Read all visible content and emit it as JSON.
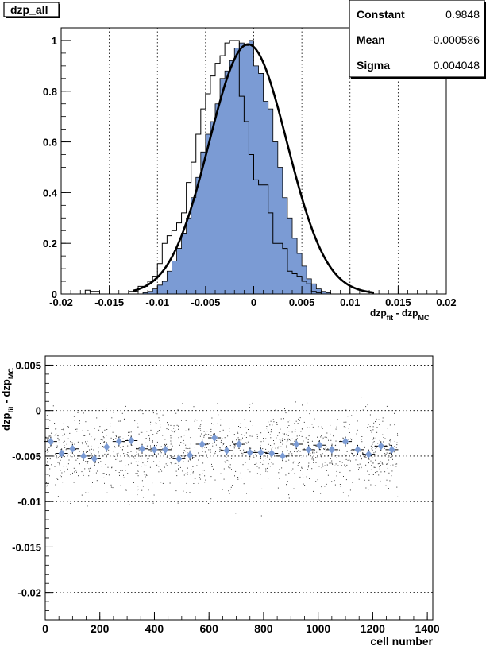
{
  "title_box": {
    "label": "dzp_all"
  },
  "stats_box": {
    "rows": [
      {
        "name": "Constant",
        "value": "0.9848"
      },
      {
        "name": "Mean",
        "value": "-0.000586"
      },
      {
        "name": "Sigma",
        "value": "0.004048"
      }
    ]
  },
  "chart_data": [
    {
      "type": "histogram",
      "title": "dzp_all",
      "xlabel_main": "dzp",
      "xlabel_sub1": "fit",
      "xlabel_mid": " - dzp",
      "xlabel_sub2": "MC",
      "xlim": [
        -0.02,
        0.02
      ],
      "ylim": [
        0,
        1.05
      ],
      "grid": "vertical dotted",
      "xticks": [
        {
          "v": -0.02,
          "t": "-0.02"
        },
        {
          "v": -0.015,
          "t": "-0.015"
        },
        {
          "v": -0.01,
          "t": "-0.01"
        },
        {
          "v": -0.005,
          "t": "-0.005"
        },
        {
          "v": 0,
          "t": "0"
        },
        {
          "v": 0.005,
          "t": "0.005"
        },
        {
          "v": 0.01,
          "t": "0.01"
        },
        {
          "v": 0.015,
          "t": "0.015"
        },
        {
          "v": 0.02,
          "t": "0.02"
        }
      ],
      "yticks": [
        {
          "v": 0,
          "t": "0"
        },
        {
          "v": 0.2,
          "t": "0.2"
        },
        {
          "v": 0.4,
          "t": "0.4"
        },
        {
          "v": 0.6,
          "t": "0.6"
        },
        {
          "v": 0.8,
          "t": "0.8"
        },
        {
          "v": 1,
          "t": "1"
        }
      ],
      "bin_edges_start": -0.0185,
      "bin_width": 0.0005,
      "filled_series": {
        "name": "",
        "color": "#7b9bd4",
        "values": [
          0,
          0,
          0,
          0,
          0,
          0,
          0,
          0,
          0,
          0,
          0,
          0,
          0,
          0,
          0.005,
          0.01,
          0.02,
          0.035,
          0.05,
          0.09,
          0.13,
          0.18,
          0.24,
          0.3,
          0.38,
          0.46,
          0.56,
          0.63,
          0.68,
          0.75,
          0.85,
          0.88,
          0.92,
          0.97,
          0.99,
          0.98,
          1.0,
          0.9,
          0.87,
          0.76,
          0.73,
          0.6,
          0.5,
          0.38,
          0.3,
          0.22,
          0.16,
          0.11,
          0.06,
          0.04,
          0.02,
          0.01,
          0.005,
          0,
          0,
          0,
          0,
          0,
          0,
          0,
          0,
          0,
          0,
          0,
          0,
          0,
          0,
          0,
          0,
          0,
          0,
          0,
          0
        ]
      },
      "outline_series": {
        "name": "",
        "color": "#000000",
        "values": [
          0,
          0,
          0.015,
          0.01,
          0.01,
          0,
          0,
          0,
          0,
          0,
          0,
          0.01,
          0.01,
          0.03,
          0.03,
          0.05,
          0.07,
          0.12,
          0.2,
          0.23,
          0.25,
          0.28,
          0.32,
          0.44,
          0.52,
          0.63,
          0.73,
          0.79,
          0.86,
          0.91,
          0.94,
          0.99,
          1.0,
          1.0,
          0.78,
          0.68,
          0.55,
          0.45,
          0.43,
          0.43,
          0.32,
          0.2,
          0.2,
          0.18,
          0.09,
          0.08,
          0.07,
          0.05,
          0.04,
          0.01,
          0.005,
          0,
          0,
          0,
          0,
          0,
          0,
          0,
          0,
          0,
          0,
          0,
          0,
          0,
          0,
          0,
          0,
          0,
          0,
          0,
          0,
          0,
          0
        ]
      },
      "fit": {
        "type": "gaussian",
        "constant": 0.9848,
        "mean": -0.000586,
        "sigma": 0.004048
      }
    },
    {
      "type": "scatter",
      "title": "",
      "xlabel": "cell number",
      "ylabel_main": "dzp",
      "ylabel_sub1": "fit",
      "ylabel_mid": " - dzp",
      "ylabel_sub2": "MC",
      "xlim": [
        0,
        1420
      ],
      "ylim": [
        -0.023,
        0.006
      ],
      "grid": "horizontal dotted",
      "xticks": [
        {
          "v": 0,
          "t": "0"
        },
        {
          "v": 200,
          "t": "200"
        },
        {
          "v": 400,
          "t": "400"
        },
        {
          "v": 600,
          "t": "600"
        },
        {
          "v": 800,
          "t": "800"
        },
        {
          "v": 1000,
          "t": "1000"
        },
        {
          "v": 1200,
          "t": "1200"
        },
        {
          "v": 1400,
          "t": "1400"
        }
      ],
      "yticks": [
        {
          "v": 0.005,
          "t": "0.005"
        },
        {
          "v": 0,
          "t": "0"
        },
        {
          "v": -0.005,
          "t": "-0.005"
        },
        {
          "v": -0.01,
          "t": "-0.01"
        },
        {
          "v": -0.015,
          "t": "-0.015"
        },
        {
          "v": -0.02,
          "t": "-0.02"
        }
      ],
      "profile_points": {
        "name": "",
        "color": "#7b9bd4",
        "x": [
          20,
          60,
          100,
          140,
          180,
          225,
          270,
          315,
          355,
          400,
          440,
          490,
          530,
          575,
          620,
          665,
          710,
          750,
          790,
          830,
          870,
          920,
          965,
          1005,
          1050,
          1100,
          1145,
          1185,
          1230,
          1270
        ],
        "y": [
          -0.0034,
          -0.0047,
          -0.0042,
          -0.005,
          -0.0053,
          -0.004,
          -0.0034,
          -0.0033,
          -0.0042,
          -0.0043,
          -0.0043,
          -0.0053,
          -0.0049,
          -0.0037,
          -0.003,
          -0.0044,
          -0.0037,
          -0.0046,
          -0.0046,
          -0.0047,
          -0.005,
          -0.0037,
          -0.0043,
          -0.0038,
          -0.0043,
          -0.0034,
          -0.0043,
          -0.0048,
          -0.0039,
          -0.0043
        ]
      },
      "scatter_cloud": {
        "x_range": [
          0,
          1290
        ],
        "center": -0.0044,
        "spread": 0.0035,
        "n_points": 1300
      }
    }
  ]
}
